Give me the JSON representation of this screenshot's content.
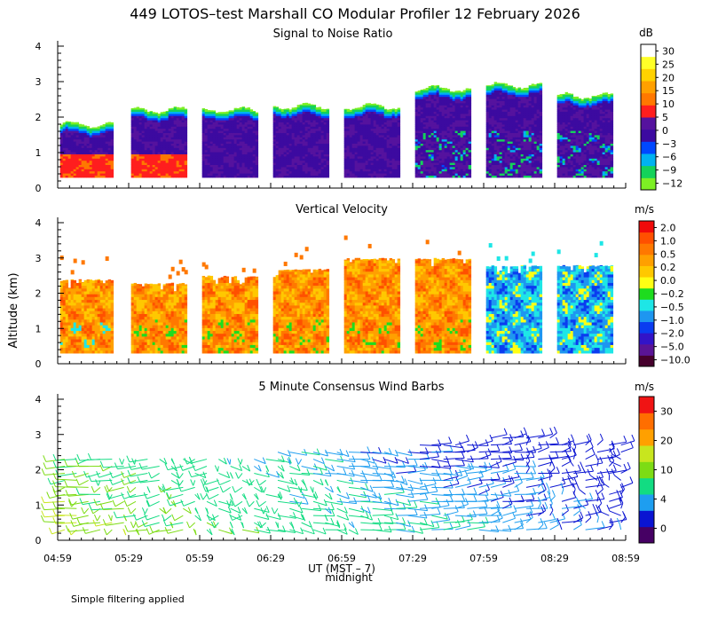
{
  "title": "449 LOTOS–test Marshall CO Modular Profiler 12 February 2026",
  "y_axis_label": "Altitude (km)",
  "x_axis_label": "UT  (MST – 7)",
  "midnight_label": "midnight",
  "footnote": "Simple filtering applied",
  "time_ticks": [
    "04:59",
    "05:29",
    "05:59",
    "06:29",
    "06:59",
    "07:29",
    "07:59",
    "08:29",
    "08:59"
  ],
  "altitude_ticks": [
    "0",
    "1",
    "2",
    "3",
    "4"
  ],
  "colors": {
    "snr": [
      "#7df024",
      "#14d25a",
      "#00b2f0",
      "#0048ff",
      "#3c0aa0",
      "#55129e",
      "#ff1e1e",
      "#ff7800",
      "#ffa000",
      "#ffd200",
      "#ffff28",
      "#ffffff"
    ],
    "vv": [
      "#46002d",
      "#5a1496",
      "#3214c8",
      "#0a3cf0",
      "#1e96f0",
      "#1ee6e6",
      "#1edc1e",
      "#ffff14",
      "#ffc800",
      "#ffa000",
      "#ff7800",
      "#ff5000",
      "#f00a0a"
    ],
    "wind": [
      "#460064",
      "#0a14d2",
      "#1e9ef0",
      "#12dc82",
      "#7ddc14",
      "#c8e61e",
      "#ffa000",
      "#ff6e00",
      "#f01414"
    ]
  },
  "chart_data": [
    {
      "type": "heatmap",
      "title": "Signal to Noise Ratio",
      "units": "dB",
      "xlabel": "UT",
      "ylabel": "Altitude (km)",
      "ylim": [
        0,
        4
      ],
      "colorbar_ticks": [
        "30",
        "25",
        "20",
        "15",
        "10",
        "5",
        "0",
        "−3",
        "−6",
        "−9",
        "−12"
      ],
      "segments": [
        {
          "start": "05:00",
          "end": "05:23",
          "top_km": 1.8,
          "low_layer_top_km": 0.9,
          "low_layer": "red"
        },
        {
          "start": "05:30",
          "end": "05:54",
          "top_km": 2.2,
          "low_layer_top_km": 0.9,
          "low_layer": "red"
        },
        {
          "start": "06:00",
          "end": "06:24",
          "top_km": 2.2
        },
        {
          "start": "06:30",
          "end": "06:54",
          "top_km": 2.3
        },
        {
          "start": "07:00",
          "end": "07:24",
          "top_km": 2.3
        },
        {
          "start": "07:30",
          "end": "07:54",
          "top_km": 2.8
        },
        {
          "start": "08:00",
          "end": "08:24",
          "top_km": 2.9
        },
        {
          "start": "08:30",
          "end": "08:54",
          "top_km": 2.6
        }
      ]
    },
    {
      "type": "heatmap",
      "title": "Vertical Velocity",
      "units": "m/s",
      "xlabel": "UT",
      "ylabel": "Altitude (km)",
      "ylim": [
        0,
        4
      ],
      "colorbar_ticks": [
        "2.0",
        "1.0",
        "0.5",
        "0.2",
        "0.0",
        "−0.2",
        "−0.5",
        "−1.0",
        "−2.0",
        "−5.0",
        "−10.0"
      ],
      "segments": [
        {
          "start": "05:00",
          "end": "05:23",
          "top_km": 2.4,
          "character": "updraft-mixed"
        },
        {
          "start": "05:30",
          "end": "05:54",
          "top_km": 2.3,
          "character": "updraft"
        },
        {
          "start": "06:00",
          "end": "06:24",
          "top_km": 2.5,
          "character": "updraft"
        },
        {
          "start": "06:30",
          "end": "06:54",
          "top_km": 2.7,
          "character": "updraft-mixed"
        },
        {
          "start": "07:00",
          "end": "07:24",
          "top_km": 3.0,
          "character": "updraft"
        },
        {
          "start": "07:30",
          "end": "07:54",
          "top_km": 3.0,
          "character": "updraft"
        },
        {
          "start": "08:00",
          "end": "08:24",
          "top_km": 2.8,
          "character": "downdraft"
        },
        {
          "start": "08:30",
          "end": "08:54",
          "top_km": 2.8,
          "character": "downdraft"
        }
      ]
    },
    {
      "type": "wind_barbs",
      "title": "5 Minute Consensus Wind Barbs",
      "units": "m/s",
      "xlabel": "UT",
      "ylabel": "Altitude (km)",
      "ylim": [
        0,
        4
      ],
      "colorbar_ticks": [
        "30",
        "20",
        "10",
        "4",
        "0"
      ],
      "interval_minutes": 5,
      "speed_trend": "winds weaken and back through the period; strongest (10–15 m/s) below 2 km early, 0–5 m/s late"
    }
  ]
}
